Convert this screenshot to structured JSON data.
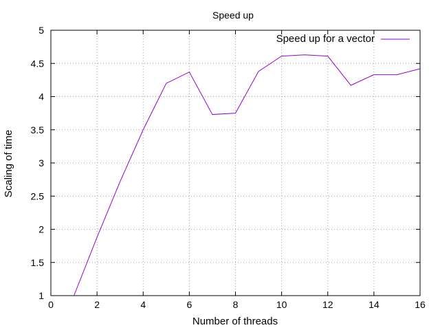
{
  "chart_data": {
    "type": "line",
    "title": "Speed up",
    "xlabel": "Number of threads",
    "ylabel": "Scaling of time",
    "xlim": [
      0,
      16
    ],
    "ylim": [
      1,
      5
    ],
    "xticks": [
      0,
      2,
      4,
      6,
      8,
      10,
      12,
      14,
      16
    ],
    "yticks": [
      1,
      1.5,
      2,
      2.5,
      3,
      3.5,
      4,
      4.5,
      5
    ],
    "xtick_labels": [
      "0",
      "2",
      "4",
      "6",
      "8",
      "10",
      "12",
      "14",
      "16"
    ],
    "ytick_labels": [
      "1",
      "1.5",
      "2",
      "2.5",
      "3",
      "3.5",
      "4",
      "4.5",
      "5"
    ],
    "grid": true,
    "legend_position": "top-right",
    "series": [
      {
        "name": "Speed up for a vector",
        "color": "#9400d3",
        "x": [
          1,
          2,
          3,
          4,
          5,
          6,
          7,
          8,
          9,
          10,
          11,
          12,
          13,
          14,
          15,
          16
        ],
        "y": [
          1.0,
          1.88,
          2.72,
          3.5,
          4.2,
          4.37,
          3.73,
          3.75,
          4.38,
          4.61,
          4.63,
          4.61,
          4.17,
          4.33,
          4.33,
          4.42
        ]
      }
    ]
  }
}
